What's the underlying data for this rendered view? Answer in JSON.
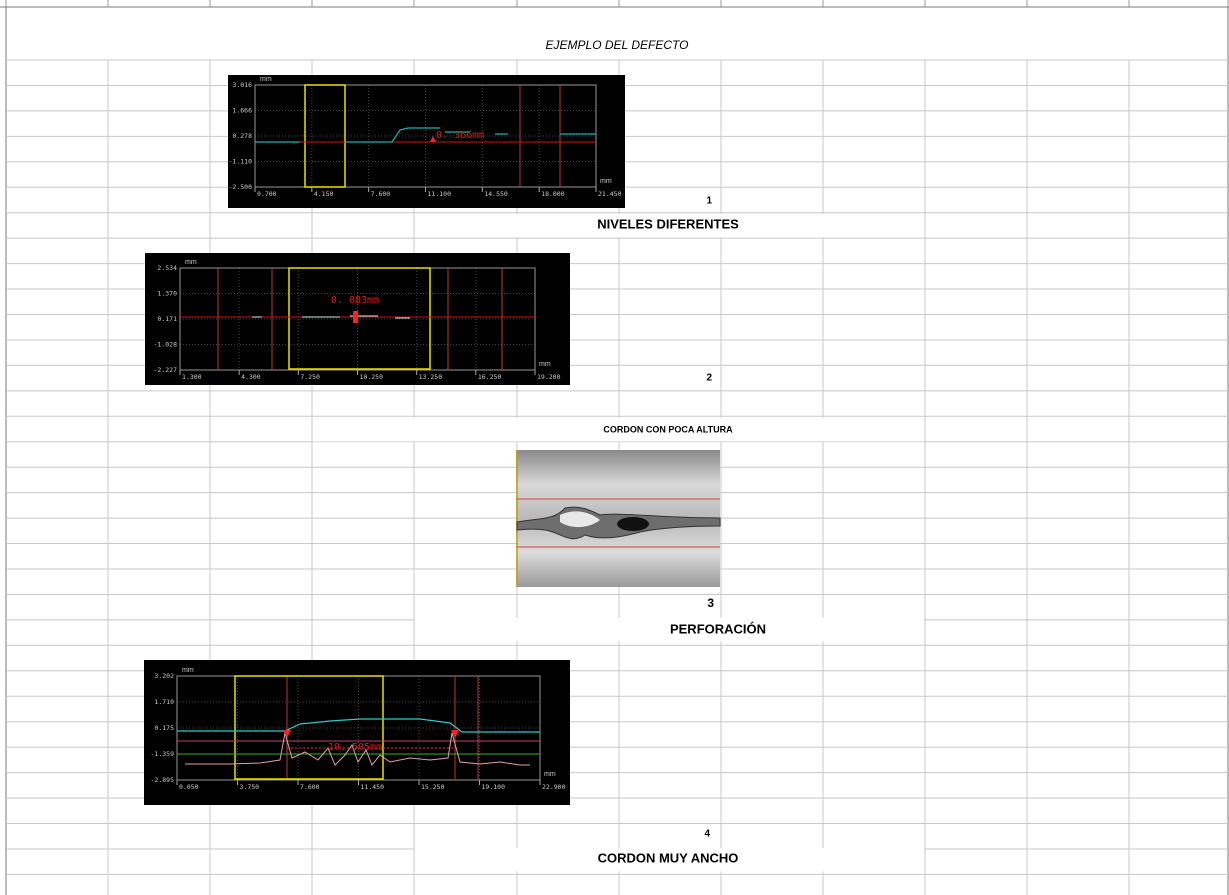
{
  "header": {
    "title": "EJEMPLO DEL DEFECTO"
  },
  "defects": [
    {
      "number": "1",
      "label": "NIVELES DIFERENTES",
      "chart": {
        "y_unit": "mm",
        "x_unit": "mm",
        "y_ticks": [
          "3.016",
          "1.666",
          "0.278",
          "-1.110",
          "-2.500"
        ],
        "x_ticks": [
          "0.700",
          "4.150",
          "7.600",
          "11.100",
          "14.550",
          "18.000",
          "21.450"
        ],
        "measurement": "0. 366mm"
      }
    },
    {
      "number": "2",
      "label": "CORDON CON POCA ALTURA",
      "chart": {
        "y_unit": "mm",
        "x_unit": "mm",
        "y_ticks": [
          "2.534",
          "1.370",
          "0.171",
          "-1.028",
          "-2.227"
        ],
        "x_ticks": [
          "1.300",
          "4.300",
          "7.250",
          "10.250",
          "13.250",
          "16.250",
          "19.200"
        ],
        "measurement": "0. 083mm"
      }
    },
    {
      "number": "3",
      "label": "PERFORACIÓN"
    },
    {
      "number": "4",
      "label": "CORDON MUY ANCHO",
      "chart": {
        "y_unit": "mm",
        "x_unit": "mm",
        "y_ticks": [
          "3.202",
          "1.710",
          "0.175",
          "-1.359",
          "-2.895"
        ],
        "x_ticks": [
          "0.050",
          "3.750",
          "7.600",
          "11.450",
          "15.250",
          "19.100",
          "22.900"
        ],
        "measurement": "10. 505mm"
      }
    }
  ]
}
